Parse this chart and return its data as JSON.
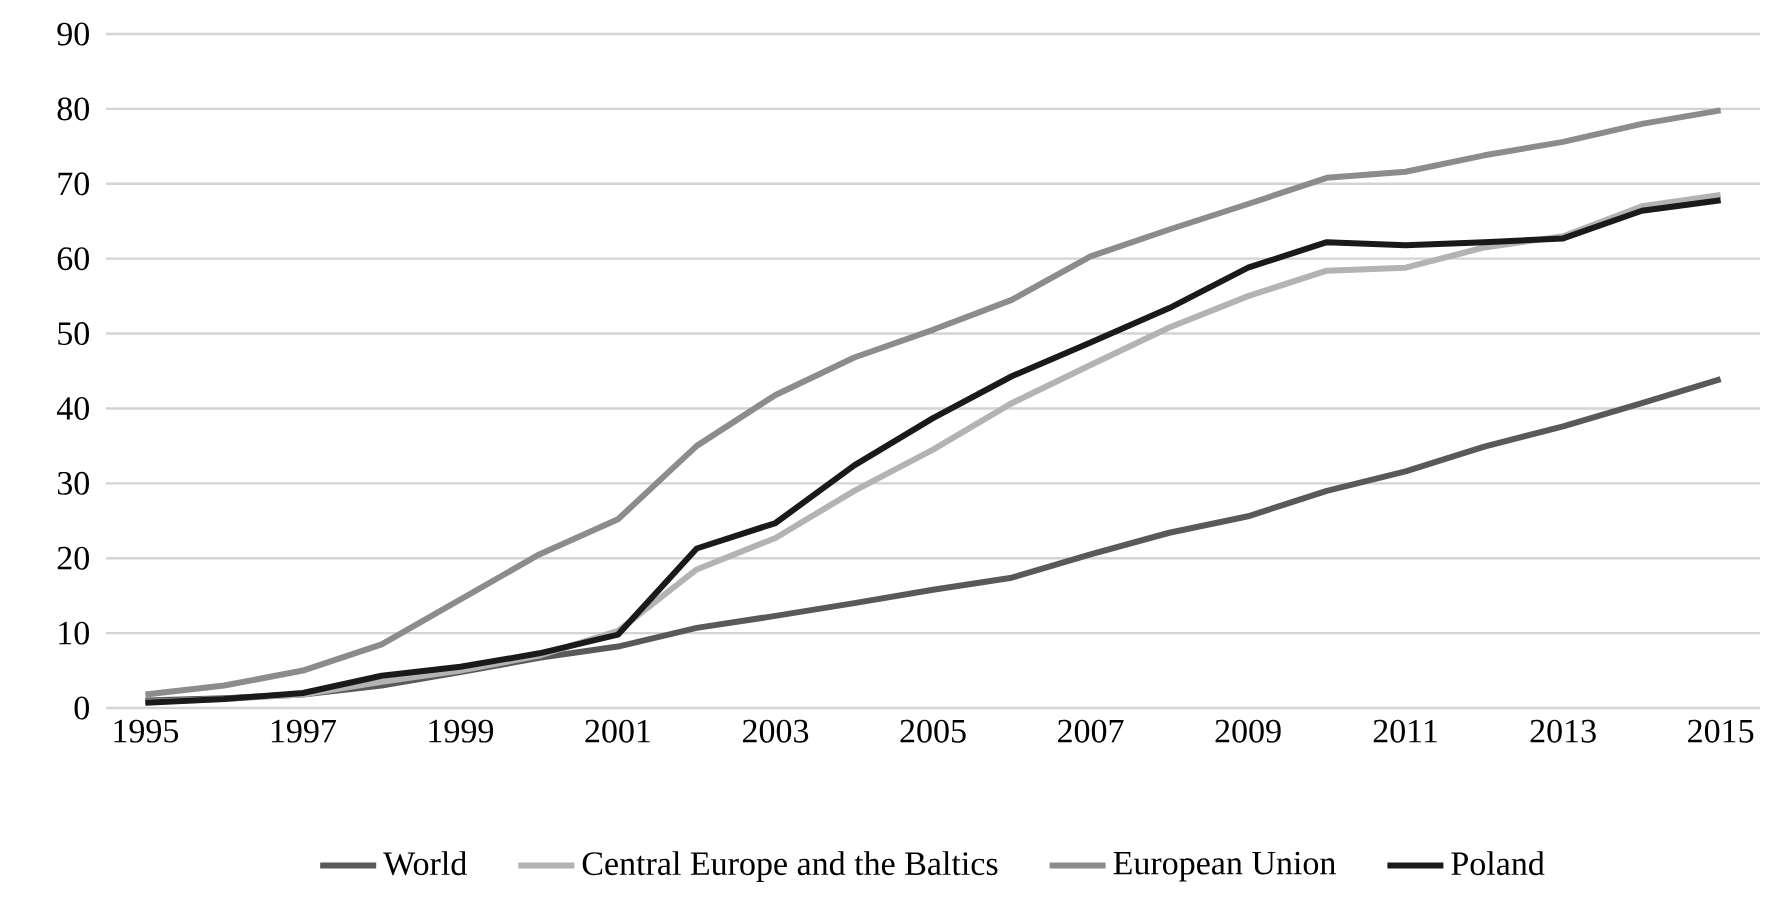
{
  "chart_data": {
    "type": "line",
    "x": [
      1995,
      1996,
      1997,
      1998,
      1999,
      2000,
      2001,
      2002,
      2003,
      2004,
      2005,
      2006,
      2007,
      2008,
      2009,
      2010,
      2011,
      2012,
      2013,
      2014,
      2015
    ],
    "series": [
      {
        "name": "World",
        "color": "#595959",
        "values": [
          1.0,
          1.3,
          1.8,
          3.0,
          4.8,
          6.7,
          8.2,
          10.7,
          12.3,
          14.0,
          15.8,
          17.4,
          20.5,
          23.4,
          25.6,
          29.0,
          31.6,
          34.9,
          37.6,
          40.7,
          43.9
        ]
      },
      {
        "name": "Central Europe and the Baltics",
        "color": "#b3b3b3",
        "values": [
          0.8,
          1.2,
          1.8,
          3.5,
          5.0,
          7.0,
          10.3,
          18.5,
          22.7,
          29.0,
          34.5,
          40.7,
          45.8,
          50.8,
          55.0,
          58.4,
          58.8,
          61.5,
          63.0,
          67.0,
          68.5
        ]
      },
      {
        "name": "European Union",
        "color": "#8c8c8c",
        "values": [
          1.8,
          3.0,
          5.0,
          8.5,
          14.5,
          20.5,
          25.2,
          35.0,
          41.8,
          46.8,
          50.5,
          54.5,
          60.3,
          63.9,
          67.3,
          70.8,
          71.6,
          73.8,
          75.6,
          78.0,
          79.8
        ]
      },
      {
        "name": "Poland",
        "color": "#1a1a1a",
        "values": [
          0.7,
          1.2,
          2.0,
          4.3,
          5.5,
          7.3,
          9.8,
          21.3,
          24.7,
          32.4,
          38.7,
          44.3,
          48.8,
          53.4,
          58.8,
          62.2,
          61.8,
          62.2,
          62.7,
          66.4,
          67.8
        ]
      }
    ],
    "xlim": [
      1994.5,
      2015.5
    ],
    "xticks": [
      1995,
      1997,
      1999,
      2001,
      2003,
      2005,
      2007,
      2009,
      2011,
      2013,
      2015
    ],
    "ylim": [
      0,
      90
    ],
    "yticks": [
      0,
      10,
      20,
      30,
      40,
      50,
      60,
      70,
      80,
      90
    ],
    "grid": "y",
    "legend": "bottom",
    "marker": "none",
    "line_style": "solid"
  }
}
